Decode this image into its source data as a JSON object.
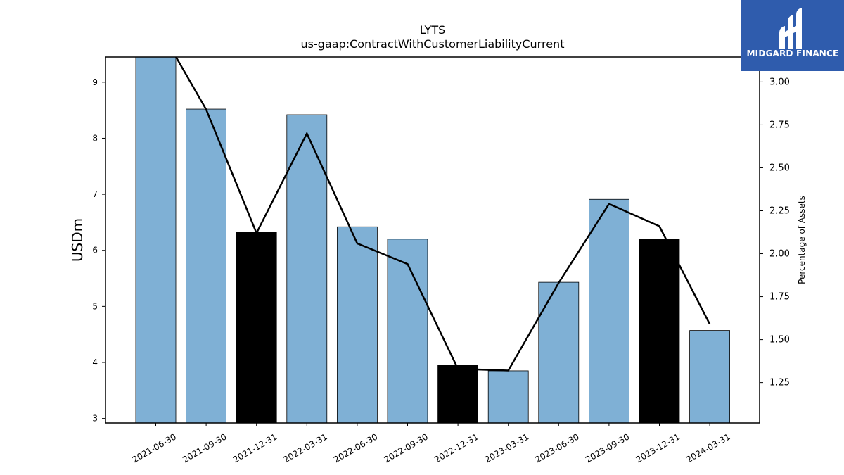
{
  "brand": {
    "name": "MIDGARD FINANCE",
    "background": "#2f5cad"
  },
  "chart_data": {
    "type": "bar",
    "title": "LYTS",
    "subtitle": "us-gaap:ContractWithCustomerLiabilityCurrent",
    "ylabel": "USDm",
    "ylabel_right": "Percentage of Assets",
    "categories": [
      "2021-06-30",
      "2021-09-30",
      "2021-12-31",
      "2022-03-31",
      "2022-06-30",
      "2022-09-30",
      "2022-12-31",
      "2023-03-31",
      "2023-06-30",
      "2023-09-30",
      "2023-12-31",
      "2024-03-31"
    ],
    "series": [
      {
        "type": "bar",
        "axis": "left",
        "values": [
          9.45,
          8.52,
          6.33,
          8.42,
          6.42,
          6.2,
          3.95,
          3.85,
          5.43,
          6.91,
          6.2,
          4.57
        ],
        "colors": [
          "#7fb0d5",
          "#7fb0d5",
          "#000000",
          "#7fb0d5",
          "#7fb0d5",
          "#7fb0d5",
          "#000000",
          "#7fb0d5",
          "#7fb0d5",
          "#7fb0d5",
          "#000000",
          "#7fb0d5"
        ]
      },
      {
        "type": "line",
        "axis": "right",
        "color": "#000000",
        "values": [
          3.35,
          2.84,
          2.12,
          2.7,
          2.06,
          1.94,
          1.33,
          1.32,
          1.83,
          2.29,
          2.16,
          1.59
        ]
      }
    ],
    "ylim": [
      2.92,
      9.45
    ],
    "ylim_right": [
      1.015,
      3.145
    ],
    "yticks": [
      3,
      4,
      5,
      6,
      7,
      8,
      9
    ],
    "yticks_right": [
      "1.25",
      "1.50",
      "1.75",
      "2.00",
      "2.25",
      "2.50",
      "2.75",
      "3.00"
    ],
    "grid": false
  }
}
